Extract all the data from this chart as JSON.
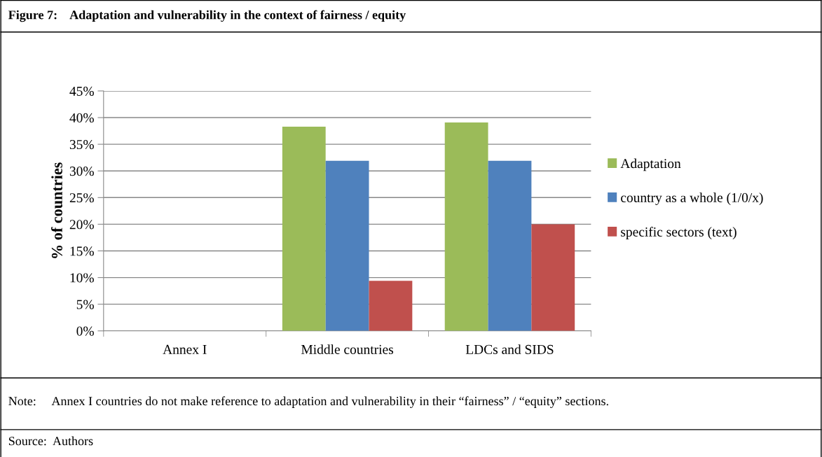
{
  "chart_data": {
    "type": "bar",
    "title": "Figure 7:    Adaptation and vulnerability in the context of fairness / equity",
    "ylabel": "% of countries",
    "categories": [
      "Annex I",
      "Middle countries",
      "LDCs and SIDS"
    ],
    "series": [
      {
        "name": "Adaptation",
        "color": "#9bbb59",
        "values": [
          0,
          38.3,
          39.1
        ]
      },
      {
        "name": "country as a whole (1/0/x)",
        "color": "#4f81bd",
        "values": [
          0,
          31.9,
          31.9
        ]
      },
      {
        "name": "specific sectors (text)",
        "color": "#c0504d",
        "values": [
          0,
          9.4,
          20.0
        ]
      }
    ],
    "ylim": [
      0,
      45
    ],
    "yticks": [
      {
        "value": 0,
        "label": "0%"
      },
      {
        "value": 5,
        "label": "5%"
      },
      {
        "value": 10,
        "label": "10%"
      },
      {
        "value": 15,
        "label": "15%"
      },
      {
        "value": 20,
        "label": "20%"
      },
      {
        "value": 25,
        "label": "25%"
      },
      {
        "value": 30,
        "label": "30%"
      },
      {
        "value": 35,
        "label": "35%"
      },
      {
        "value": 40,
        "label": "40%"
      },
      {
        "value": 45,
        "label": "45%"
      }
    ],
    "grid": "y",
    "legend": "right",
    "annotations": [
      "Note:     Annex I countries do not make reference to adaptation and vulnerability in their “fairness” / “equity” sections.",
      "Source:  Authors"
    ]
  }
}
